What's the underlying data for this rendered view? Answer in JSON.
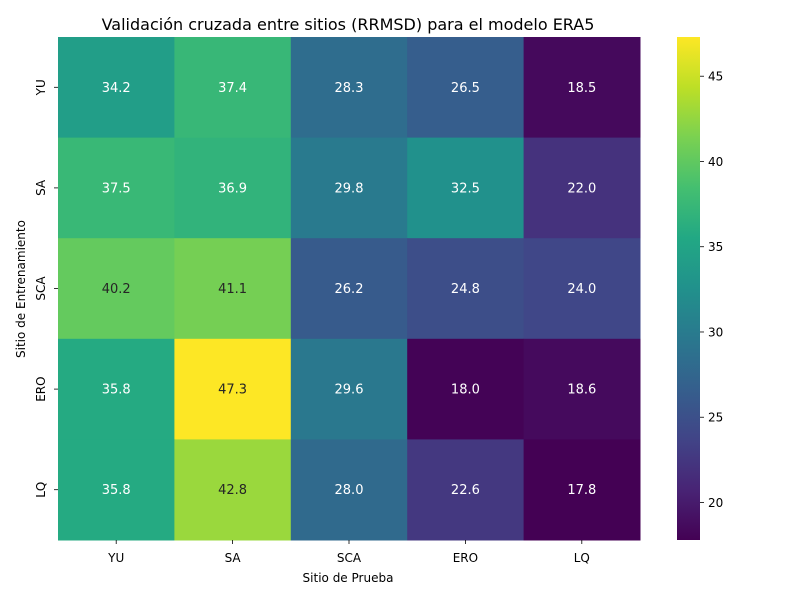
{
  "chart_data": {
    "type": "heatmap",
    "title": "Validación cruzada entre sitios (RRMSD) para el modelo ERA5",
    "xlabel": "Sitio de Prueba",
    "ylabel": "Sitio de Entrenamiento",
    "x_categories": [
      "YU",
      "SA",
      "SCA",
      "ERO",
      "LQ"
    ],
    "y_categories": [
      "YU",
      "SA",
      "SCA",
      "ERO",
      "LQ"
    ],
    "values": [
      [
        34.2,
        37.4,
        28.3,
        26.5,
        18.5
      ],
      [
        37.5,
        36.9,
        29.8,
        32.5,
        22.0
      ],
      [
        40.2,
        41.1,
        26.2,
        24.8,
        24.0
      ],
      [
        35.8,
        47.3,
        29.6,
        18.0,
        18.6
      ],
      [
        35.8,
        42.8,
        28.0,
        22.6,
        17.8
      ]
    ],
    "value_labels": [
      [
        "34.2",
        "37.4",
        "28.3",
        "26.5",
        "18.5"
      ],
      [
        "37.5",
        "36.9",
        "29.8",
        "32.5",
        "22.0"
      ],
      [
        "40.2",
        "41.1",
        "26.2",
        "24.8",
        "24.0"
      ],
      [
        "35.8",
        "47.3",
        "29.6",
        "18.0",
        "18.6"
      ],
      [
        "35.8",
        "42.8",
        "28.0",
        "22.6",
        "17.8"
      ]
    ],
    "colormap": "viridis",
    "color_range": [
      17.8,
      47.3
    ],
    "colorbar_ticks": [
      20,
      25,
      30,
      35,
      40,
      45
    ],
    "colorbar_tick_labels": [
      "20",
      "25",
      "30",
      "35",
      "40",
      "45"
    ],
    "grid": false
  }
}
